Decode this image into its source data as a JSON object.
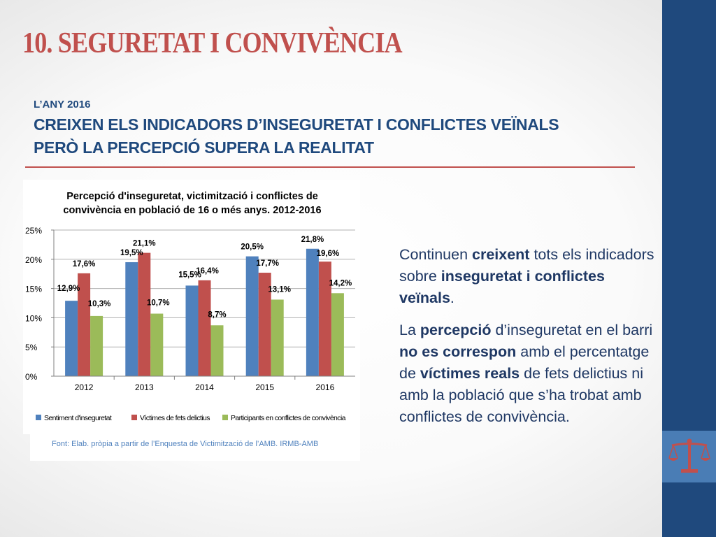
{
  "slide": {
    "title": "10. SEGURETAT I CONVIVÈNCIA",
    "year_label": "L’ANY 2016",
    "headline_lines": [
      "CREIXEN ELS INDICADORS D’INSEGURETAT I CONFLICTES VEÏNALS",
      "PERÒ LA PERCEPCIÓ SUPERA LA REALITAT"
    ],
    "source": "Font: Elab. pròpia a partir de l’Enquesta de Victimització de l’AMB. IRMB-AMB",
    "paragraph1": [
      {
        "t": "Continuen ",
        "b": false
      },
      {
        "t": "creixent",
        "b": true
      },
      {
        "t": " tots els indicadors sobre ",
        "b": false
      },
      {
        "t": "inseguretat i conflictes veïnals",
        "b": true
      },
      {
        "t": ".",
        "b": false
      }
    ],
    "paragraph2": [
      {
        "t": "La ",
        "b": false
      },
      {
        "t": "percepció",
        "b": true
      },
      {
        "t": " d’inseguretat en el barri ",
        "b": false
      },
      {
        "t": "no es correspon",
        "b": true
      },
      {
        "t": " amb el percentatge de ",
        "b": false
      },
      {
        "t": "víctimes reals",
        "b": true
      },
      {
        "t": " de fets delictius ni amb la població que s’ha trobat amb conflictes de convivència.",
        "b": false
      }
    ],
    "icon": "scales-of-justice-icon",
    "colors": {
      "accent_red": "#c0504d",
      "navy": "#1f497d",
      "sidebar_light": "#4a7db5"
    }
  },
  "chart_data": {
    "type": "bar",
    "title_lines": [
      "Percepció d'inseguretat, victimització i conflictes de",
      "convivència en població de 16 o més anys. 2012-2016"
    ],
    "categories": [
      "2012",
      "2013",
      "2014",
      "2015",
      "2016"
    ],
    "series": [
      {
        "name": "Sentiment d'inseguretat",
        "color": "#4f81bd",
        "values": [
          12.9,
          19.5,
          15.5,
          20.5,
          21.8
        ],
        "labels": [
          "12,9%",
          "19,5%",
          "15,5%",
          "20,5%",
          "21,8%"
        ]
      },
      {
        "name": "Víctimes de fets delictius",
        "color": "#c0504d",
        "values": [
          17.6,
          21.1,
          16.4,
          17.7,
          19.6
        ],
        "labels": [
          "17,6%",
          "21,1%",
          "16,4%",
          "17,7%",
          "19,6%"
        ]
      },
      {
        "name": "Participants en conflictes de convivència",
        "color": "#9bbb59",
        "values": [
          10.3,
          10.7,
          8.7,
          13.1,
          14.2
        ],
        "labels": [
          "10,3%",
          "10,7%",
          "8,7%",
          "13,1%",
          "14,2%"
        ]
      }
    ],
    "ylim": [
      0,
      25
    ],
    "yticks": [
      0,
      5,
      10,
      15,
      20,
      25
    ],
    "ytick_labels": [
      "0%",
      "5%",
      "10%",
      "15%",
      "20%",
      "25%"
    ],
    "grid": true,
    "legend_position": "bottom"
  }
}
